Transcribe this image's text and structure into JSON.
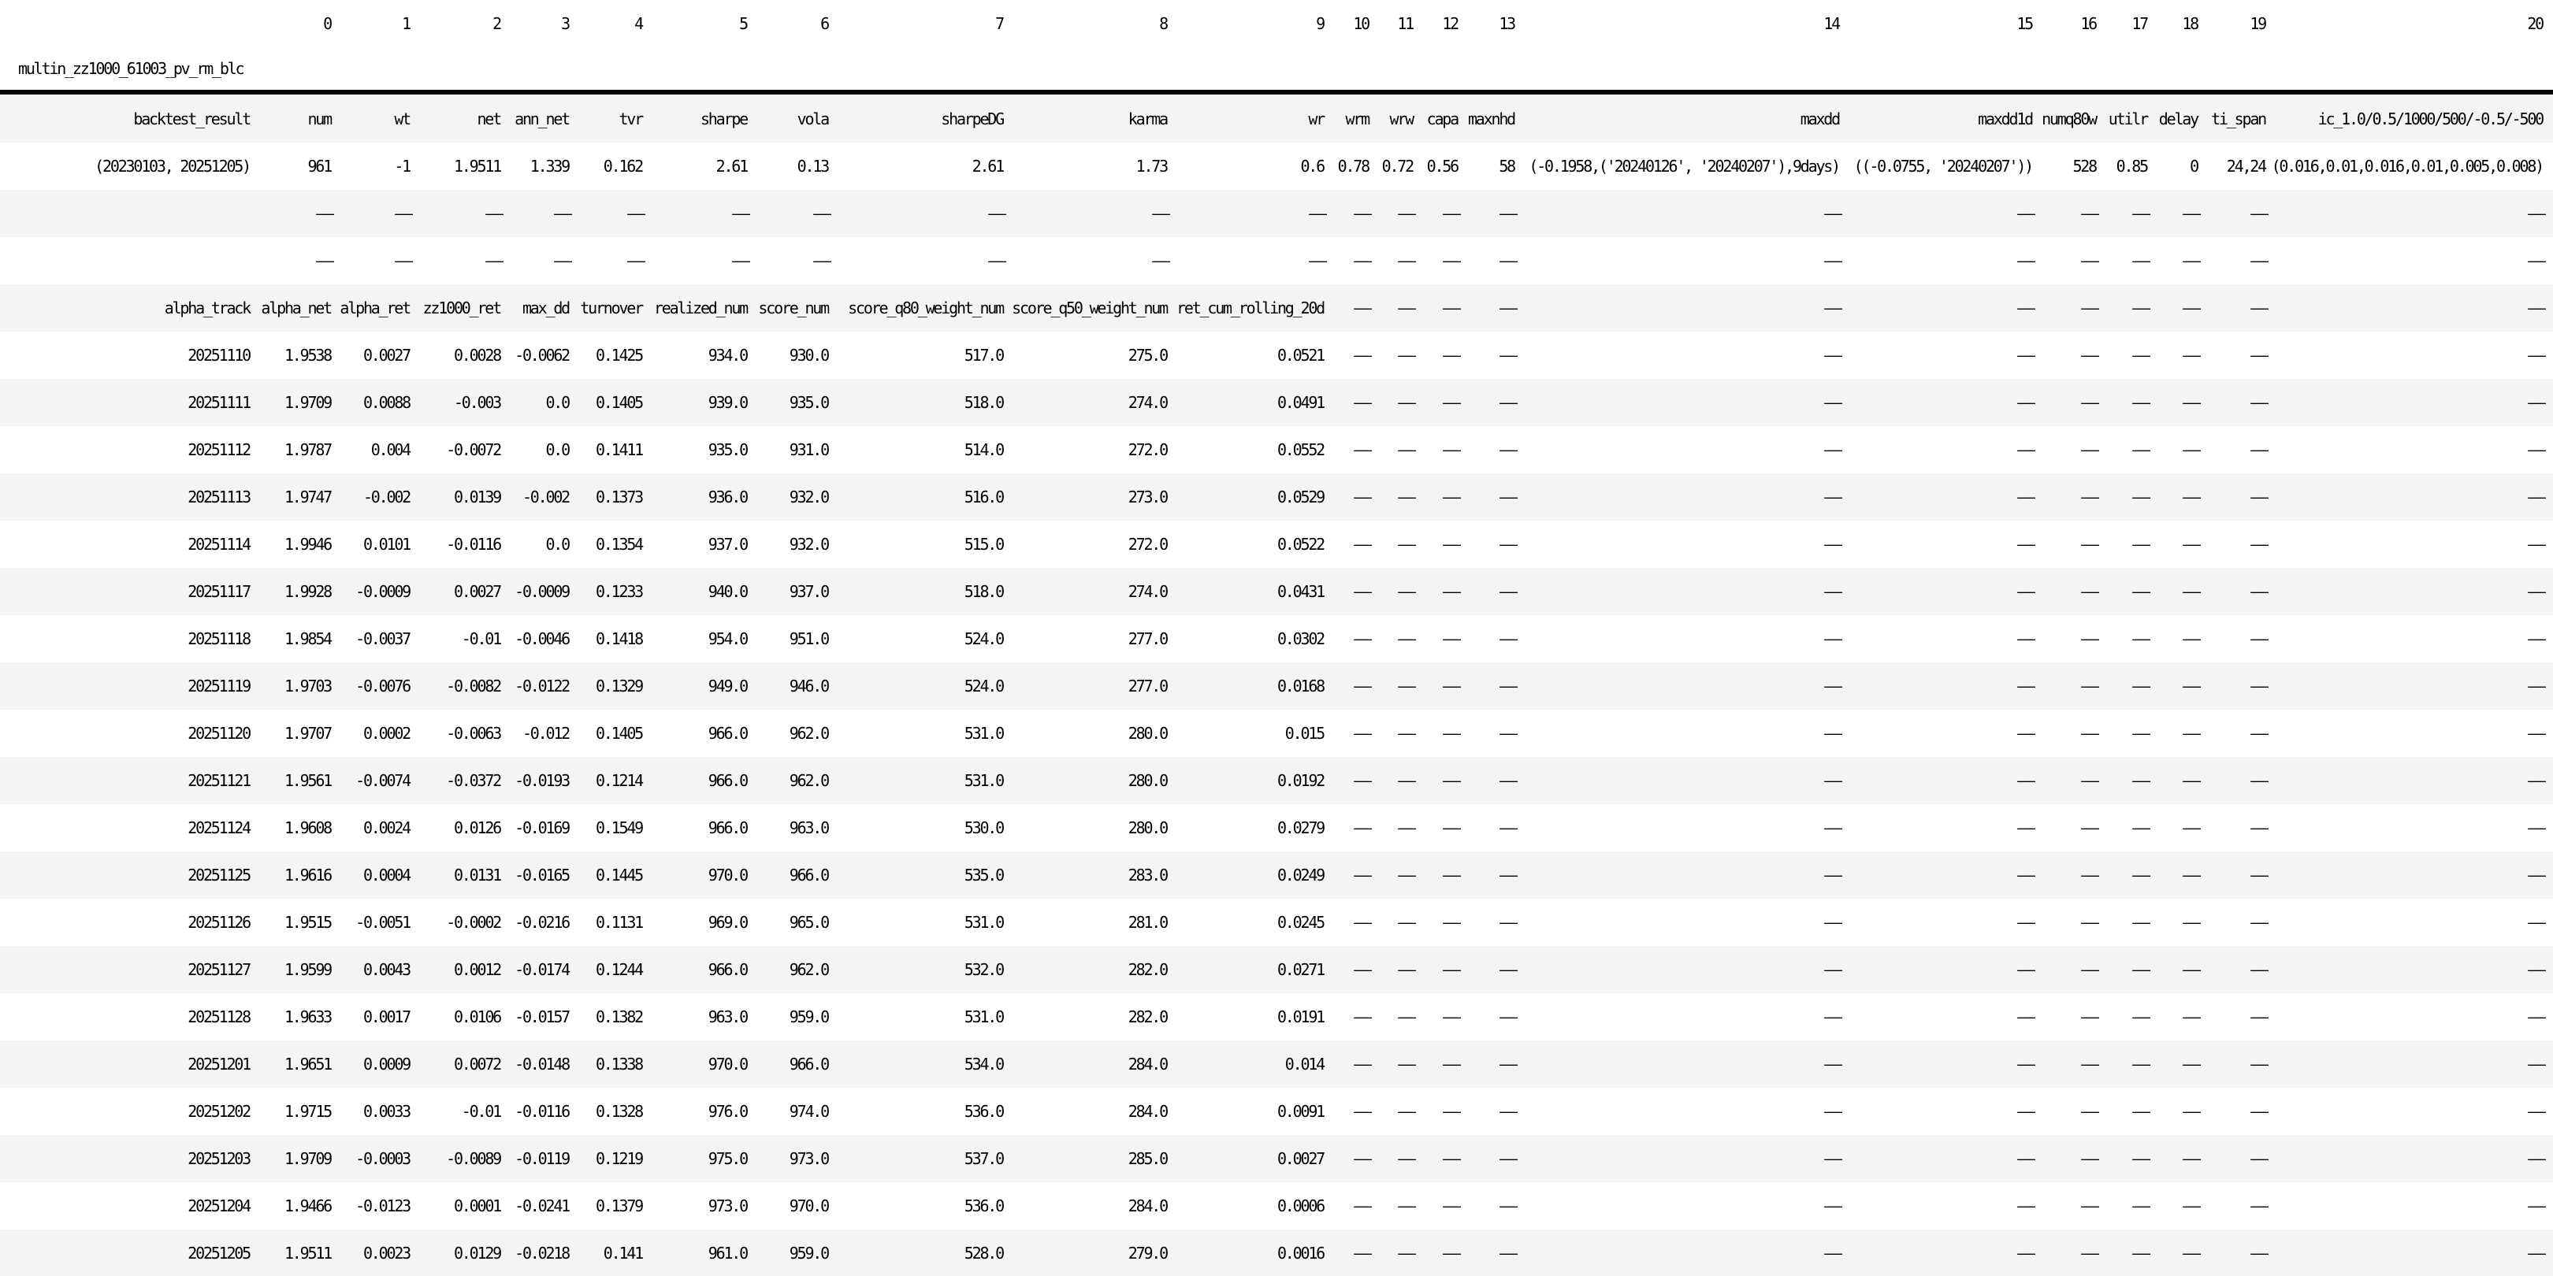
{
  "colors": {
    "background": "#ffffff",
    "stripe": "#f4f4f4",
    "rule": "#000000",
    "text": "#000000"
  },
  "table": {
    "title": "multin_zz1000_61003_pv_rm_blc",
    "column_indices": [
      "0",
      "1",
      "2",
      "3",
      "4",
      "5",
      "6",
      "7",
      "8",
      "9",
      "10",
      "11",
      "12",
      "13",
      "14",
      "15",
      "16",
      "17",
      "18",
      "19",
      "20"
    ],
    "columns": [
      "backtest_result",
      "num",
      "wt",
      "net",
      "ann_net",
      "tvr",
      "sharpe",
      "vola",
      "sharpeDG",
      "karma",
      "wr",
      "wrm",
      "wrw",
      "capa",
      "maxnhd",
      "maxdd",
      "maxdd1d",
      "numq80w",
      "utilr",
      "delay",
      "ti_span",
      "ic_1.0/0.5/1000/500/-0.5/-500"
    ],
    "rows": [
      [
        "(20230103, 20251205)",
        "961",
        "-1",
        "1.9511",
        "1.339",
        "0.162",
        "2.61",
        "0.13",
        "2.61",
        "1.73",
        "0.6",
        "0.78",
        "0.72",
        "0.56",
        "58",
        "(-0.1958,('20240126', '20240207'),9days)",
        "((-0.0755, '20240207'))",
        "528",
        "0.85",
        "0",
        "24,24",
        "(0.016,0.01,0.016,0.01,0.005,0.008)"
      ],
      [
        "",
        "—",
        "—",
        "—",
        "—",
        "—",
        "—",
        "—",
        "—",
        "—",
        "—",
        "—",
        "—",
        "—",
        "—",
        "—",
        "—",
        "—",
        "—",
        "—",
        "—",
        "—"
      ],
      [
        "",
        "—",
        "—",
        "—",
        "—",
        "—",
        "—",
        "—",
        "—",
        "—",
        "—",
        "—",
        "—",
        "—",
        "—",
        "—",
        "—",
        "—",
        "—",
        "—",
        "—",
        "—"
      ],
      [
        "alpha_track",
        "alpha_net",
        "alpha_ret",
        "zz1000_ret",
        "max_dd",
        "turnover",
        "realized_num",
        "score_num",
        "score_q80_weight_num",
        "score_q50_weight_num",
        "ret_cum_rolling_20d",
        "—",
        "—",
        "—",
        "—",
        "—",
        "—",
        "—",
        "—",
        "—",
        "—",
        "—"
      ],
      [
        "20251110",
        "1.9538",
        "0.0027",
        "0.0028",
        "-0.0062",
        "0.1425",
        "934.0",
        "930.0",
        "517.0",
        "275.0",
        "0.0521",
        "—",
        "—",
        "—",
        "—",
        "—",
        "—",
        "—",
        "—",
        "—",
        "—",
        "—"
      ],
      [
        "20251111",
        "1.9709",
        "0.0088",
        "-0.003",
        "0.0",
        "0.1405",
        "939.0",
        "935.0",
        "518.0",
        "274.0",
        "0.0491",
        "—",
        "—",
        "—",
        "—",
        "—",
        "—",
        "—",
        "—",
        "—",
        "—",
        "—"
      ],
      [
        "20251112",
        "1.9787",
        "0.004",
        "-0.0072",
        "0.0",
        "0.1411",
        "935.0",
        "931.0",
        "514.0",
        "272.0",
        "0.0552",
        "—",
        "—",
        "—",
        "—",
        "—",
        "—",
        "—",
        "—",
        "—",
        "—",
        "—"
      ],
      [
        "20251113",
        "1.9747",
        "-0.002",
        "0.0139",
        "-0.002",
        "0.1373",
        "936.0",
        "932.0",
        "516.0",
        "273.0",
        "0.0529",
        "—",
        "—",
        "—",
        "—",
        "—",
        "—",
        "—",
        "—",
        "—",
        "—",
        "—"
      ],
      [
        "20251114",
        "1.9946",
        "0.0101",
        "-0.0116",
        "0.0",
        "0.1354",
        "937.0",
        "932.0",
        "515.0",
        "272.0",
        "0.0522",
        "—",
        "—",
        "—",
        "—",
        "—",
        "—",
        "—",
        "—",
        "—",
        "—",
        "—"
      ],
      [
        "20251117",
        "1.9928",
        "-0.0009",
        "0.0027",
        "-0.0009",
        "0.1233",
        "940.0",
        "937.0",
        "518.0",
        "274.0",
        "0.0431",
        "—",
        "—",
        "—",
        "—",
        "—",
        "—",
        "—",
        "—",
        "—",
        "—",
        "—"
      ],
      [
        "20251118",
        "1.9854",
        "-0.0037",
        "-0.01",
        "-0.0046",
        "0.1418",
        "954.0",
        "951.0",
        "524.0",
        "277.0",
        "0.0302",
        "—",
        "—",
        "—",
        "—",
        "—",
        "—",
        "—",
        "—",
        "—",
        "—",
        "—"
      ],
      [
        "20251119",
        "1.9703",
        "-0.0076",
        "-0.0082",
        "-0.0122",
        "0.1329",
        "949.0",
        "946.0",
        "524.0",
        "277.0",
        "0.0168",
        "—",
        "—",
        "—",
        "—",
        "—",
        "—",
        "—",
        "—",
        "—",
        "—",
        "—"
      ],
      [
        "20251120",
        "1.9707",
        "0.0002",
        "-0.0063",
        "-0.012",
        "0.1405",
        "966.0",
        "962.0",
        "531.0",
        "280.0",
        "0.015",
        "—",
        "—",
        "—",
        "—",
        "—",
        "—",
        "—",
        "—",
        "—",
        "—",
        "—"
      ],
      [
        "20251121",
        "1.9561",
        "-0.0074",
        "-0.0372",
        "-0.0193",
        "0.1214",
        "966.0",
        "962.0",
        "531.0",
        "280.0",
        "0.0192",
        "—",
        "—",
        "—",
        "—",
        "—",
        "—",
        "—",
        "—",
        "—",
        "—",
        "—"
      ],
      [
        "20251124",
        "1.9608",
        "0.0024",
        "0.0126",
        "-0.0169",
        "0.1549",
        "966.0",
        "963.0",
        "530.0",
        "280.0",
        "0.0279",
        "—",
        "—",
        "—",
        "—",
        "—",
        "—",
        "—",
        "—",
        "—",
        "—",
        "—"
      ],
      [
        "20251125",
        "1.9616",
        "0.0004",
        "0.0131",
        "-0.0165",
        "0.1445",
        "970.0",
        "966.0",
        "535.0",
        "283.0",
        "0.0249",
        "—",
        "—",
        "—",
        "—",
        "—",
        "—",
        "—",
        "—",
        "—",
        "—",
        "—"
      ],
      [
        "20251126",
        "1.9515",
        "-0.0051",
        "-0.0002",
        "-0.0216",
        "0.1131",
        "969.0",
        "965.0",
        "531.0",
        "281.0",
        "0.0245",
        "—",
        "—",
        "—",
        "—",
        "—",
        "—",
        "—",
        "—",
        "—",
        "—",
        "—"
      ],
      [
        "20251127",
        "1.9599",
        "0.0043",
        "0.0012",
        "-0.0174",
        "0.1244",
        "966.0",
        "962.0",
        "532.0",
        "282.0",
        "0.0271",
        "—",
        "—",
        "—",
        "—",
        "—",
        "—",
        "—",
        "—",
        "—",
        "—",
        "—"
      ],
      [
        "20251128",
        "1.9633",
        "0.0017",
        "0.0106",
        "-0.0157",
        "0.1382",
        "963.0",
        "959.0",
        "531.0",
        "282.0",
        "0.0191",
        "—",
        "—",
        "—",
        "—",
        "—",
        "—",
        "—",
        "—",
        "—",
        "—",
        "—"
      ],
      [
        "20251201",
        "1.9651",
        "0.0009",
        "0.0072",
        "-0.0148",
        "0.1338",
        "970.0",
        "966.0",
        "534.0",
        "284.0",
        "0.014",
        "—",
        "—",
        "—",
        "—",
        "—",
        "—",
        "—",
        "—",
        "—",
        "—",
        "—"
      ],
      [
        "20251202",
        "1.9715",
        "0.0033",
        "-0.01",
        "-0.0116",
        "0.1328",
        "976.0",
        "974.0",
        "536.0",
        "284.0",
        "0.0091",
        "—",
        "—",
        "—",
        "—",
        "—",
        "—",
        "—",
        "—",
        "—",
        "—",
        "—"
      ],
      [
        "20251203",
        "1.9709",
        "-0.0003",
        "-0.0089",
        "-0.0119",
        "0.1219",
        "975.0",
        "973.0",
        "537.0",
        "285.0",
        "0.0027",
        "—",
        "—",
        "—",
        "—",
        "—",
        "—",
        "—",
        "—",
        "—",
        "—",
        "—"
      ],
      [
        "20251204",
        "1.9466",
        "-0.0123",
        "0.0001",
        "-0.0241",
        "0.1379",
        "973.0",
        "970.0",
        "536.0",
        "284.0",
        "0.0006",
        "—",
        "—",
        "—",
        "—",
        "—",
        "—",
        "—",
        "—",
        "—",
        "—",
        "—"
      ],
      [
        "20251205",
        "1.9511",
        "0.0023",
        "0.0129",
        "-0.0218",
        "0.141",
        "961.0",
        "959.0",
        "528.0",
        "279.0",
        "0.0016",
        "—",
        "—",
        "—",
        "—",
        "—",
        "—",
        "—",
        "—",
        "—",
        "—",
        "—"
      ]
    ]
  }
}
